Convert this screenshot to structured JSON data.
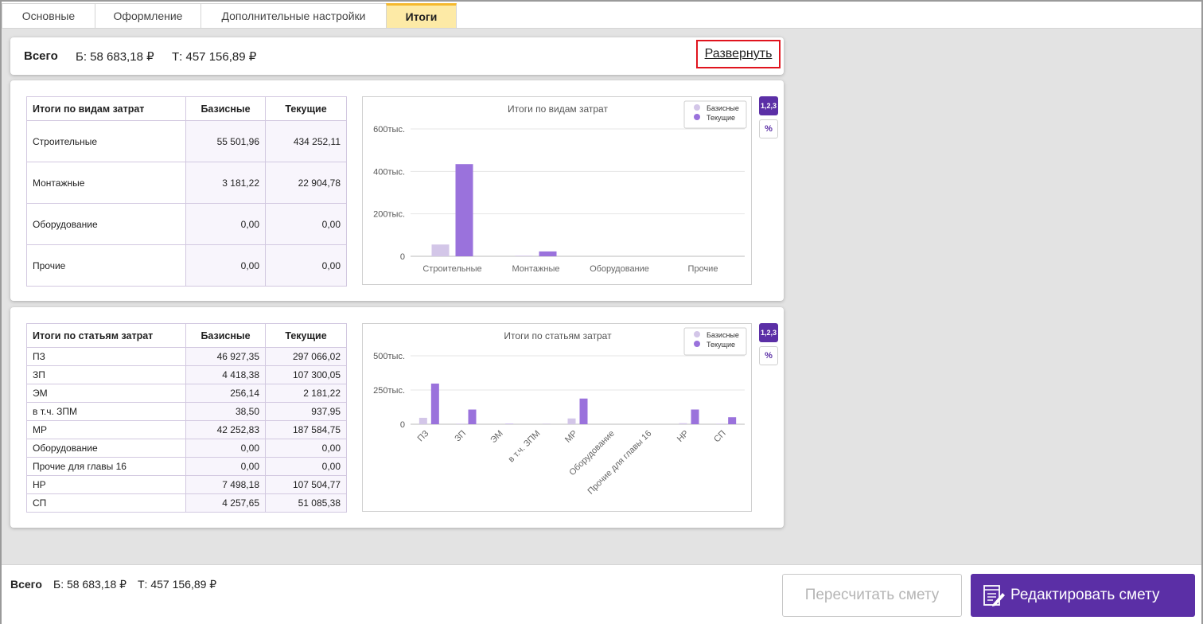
{
  "tabs": [
    {
      "label": "Основные",
      "active": false
    },
    {
      "label": "Оформление",
      "active": false
    },
    {
      "label": "Дополнительные настройки",
      "active": false
    },
    {
      "label": "Итоги",
      "active": true
    }
  ],
  "summary": {
    "title": "Всего",
    "base": "Б: 58 683,18 ₽",
    "current": "Т: 457 156,89 ₽",
    "expand_label": "Развернуть"
  },
  "cost_types": {
    "table": {
      "headers": [
        "Итоги по видам затрат",
        "Базисные",
        "Текущие"
      ],
      "rows": [
        [
          "Строительные",
          "55 501,96",
          "434 252,11"
        ],
        [
          "Монтажные",
          "3 181,22",
          "22 904,78"
        ],
        [
          "Оборудование",
          "0,00",
          "0,00"
        ],
        [
          "Прочие",
          "0,00",
          "0,00"
        ]
      ]
    },
    "buttons": {
      "numbers": "1,2,3",
      "percent": "%"
    }
  },
  "cost_items": {
    "table": {
      "headers": [
        "Итоги по статьям затрат",
        "Базисные",
        "Текущие"
      ],
      "rows": [
        [
          "ПЗ",
          "46 927,35",
          "297 066,02"
        ],
        [
          "ЗП",
          "4 418,38",
          "107 300,05"
        ],
        [
          "ЭМ",
          "256,14",
          "2 181,22"
        ],
        [
          "в т.ч. ЗПМ",
          "38,50",
          "937,95"
        ],
        [
          "МР",
          "42 252,83",
          "187 584,75"
        ],
        [
          "Оборудование",
          "0,00",
          "0,00"
        ],
        [
          "Прочие для главы 16",
          "0,00",
          "0,00"
        ],
        [
          "НР",
          "7 498,18",
          "107 504,77"
        ],
        [
          "СП",
          "4 257,65",
          "51 085,38"
        ]
      ]
    },
    "buttons": {
      "numbers": "1,2,3",
      "percent": "%"
    }
  },
  "chart_data": [
    {
      "type": "bar",
      "title": "Итоги по видам затрат",
      "categories": [
        "Строительные",
        "Монтажные",
        "Оборудование",
        "Прочие"
      ],
      "series": [
        {
          "name": "Базисные",
          "color": "#d3c6e8",
          "values": [
            55501.96,
            3181.22,
            0,
            0
          ]
        },
        {
          "name": "Текущие",
          "color": "#9a72dc",
          "values": [
            434252.11,
            22904.78,
            0,
            0
          ]
        }
      ],
      "ylim": [
        0,
        600000
      ],
      "yticks": [
        0,
        200000,
        400000,
        600000
      ],
      "ytick_labels": [
        "0",
        "200тыс.",
        "400тыс.",
        "600тыс."
      ],
      "legend": "top-right",
      "grid": true
    },
    {
      "type": "bar",
      "title": "Итоги по статьям затрат",
      "categories": [
        "ПЗ",
        "ЗП",
        "ЭМ",
        "в т.ч. ЗПМ",
        "МР",
        "Оборудование",
        "Прочие для главы 16",
        "НР",
        "СП"
      ],
      "series": [
        {
          "name": "Базисные",
          "color": "#d3c6e8",
          "values": [
            46927.35,
            4418.38,
            256.14,
            38.5,
            42252.83,
            0,
            0,
            7498.18,
            4257.65
          ]
        },
        {
          "name": "Текущие",
          "color": "#9a72dc",
          "values": [
            297066.02,
            107300.05,
            2181.22,
            937.95,
            187584.75,
            0,
            0,
            107504.77,
            51085.38
          ]
        }
      ],
      "ylim": [
        0,
        500000
      ],
      "yticks": [
        0,
        250000,
        500000
      ],
      "ytick_labels": [
        "0",
        "250тыс.",
        "500тыс."
      ],
      "legend": "top-right",
      "grid": true
    }
  ],
  "footer": {
    "title": "Всего",
    "base": "Б: 58 683,18 ₽",
    "current": "Т: 457 156,89 ₽",
    "recalc_label": "Пересчитать смету",
    "edit_label": "Редактировать смету"
  }
}
